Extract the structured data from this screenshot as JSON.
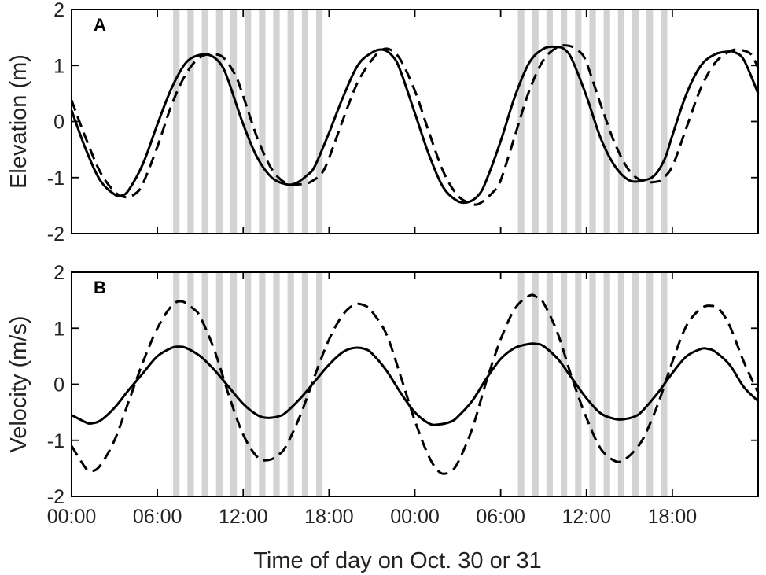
{
  "chart_data": [
    {
      "type": "line",
      "panel_label": "A",
      "ylabel": "Elevation (m)",
      "xlabel": "",
      "xlim": [
        0,
        48
      ],
      "ylim": [
        -2,
        2
      ],
      "yticks": [
        2,
        1,
        0,
        -1,
        -2
      ],
      "ytick_labels": [
        "2",
        "1",
        "0",
        "-1",
        "-2"
      ],
      "shaded_bands": [
        {
          "start": 7.1,
          "width": 0.45
        },
        {
          "start": 8.1,
          "width": 0.45
        },
        {
          "start": 9.1,
          "width": 0.45
        },
        {
          "start": 10.1,
          "width": 0.45
        },
        {
          "start": 11.1,
          "width": 0.45
        },
        {
          "start": 12.1,
          "width": 0.45
        },
        {
          "start": 13.1,
          "width": 0.45
        },
        {
          "start": 14.1,
          "width": 0.45
        },
        {
          "start": 15.1,
          "width": 0.45
        },
        {
          "start": 16.1,
          "width": 0.45
        },
        {
          "start": 17.1,
          "width": 0.45
        },
        {
          "start": 31.2,
          "width": 0.45
        },
        {
          "start": 32.2,
          "width": 0.45
        },
        {
          "start": 33.2,
          "width": 0.45
        },
        {
          "start": 34.2,
          "width": 0.45
        },
        {
          "start": 35.2,
          "width": 0.45
        },
        {
          "start": 36.2,
          "width": 0.45
        },
        {
          "start": 37.2,
          "width": 0.45
        },
        {
          "start": 38.2,
          "width": 0.45
        },
        {
          "start": 39.2,
          "width": 0.45
        },
        {
          "start": 40.2,
          "width": 0.45
        },
        {
          "start": 41.2,
          "width": 0.45
        }
      ],
      "series": [
        {
          "style": "solid",
          "x": [
            0,
            1,
            2,
            3,
            3.5,
            4,
            5,
            6,
            7,
            8,
            9,
            9.8,
            10.5,
            11,
            12,
            13,
            14,
            15,
            15.7,
            16.5,
            17,
            18,
            19,
            20,
            21,
            21.8,
            22.5,
            23,
            24,
            25,
            26,
            27,
            27.8,
            28.5,
            29,
            30,
            31,
            32,
            33,
            34,
            34.5,
            35,
            36,
            37,
            38,
            39,
            40,
            40.8,
            41.5,
            42,
            43,
            44,
            45,
            46,
            46.3,
            47,
            48
          ],
          "y": [
            0.2,
            -0.5,
            -1.05,
            -1.3,
            -1.32,
            -1.22,
            -0.75,
            -0.05,
            0.6,
            1.05,
            1.19,
            1.17,
            1.0,
            0.7,
            -0.05,
            -0.65,
            -1.0,
            -1.12,
            -1.1,
            -0.95,
            -0.8,
            -0.2,
            0.45,
            1.0,
            1.23,
            1.28,
            1.15,
            0.9,
            0.15,
            -0.6,
            -1.18,
            -1.42,
            -1.43,
            -1.3,
            -1.05,
            -0.35,
            0.45,
            1.05,
            1.3,
            1.33,
            1.28,
            1.1,
            0.45,
            -0.3,
            -0.8,
            -1.05,
            -1.05,
            -0.95,
            -0.65,
            -0.25,
            0.5,
            1.0,
            1.2,
            1.25,
            1.24,
            1.1,
            0.5
          ]
        },
        {
          "style": "dashed",
          "x": [
            0,
            1,
            2,
            3,
            3.8,
            4.5,
            5,
            6,
            7,
            8,
            9,
            10,
            10.7,
            11.5,
            12,
            13,
            14,
            15,
            16,
            16.7,
            17.5,
            18,
            19,
            20,
            21,
            21.7,
            22.3,
            23,
            24,
            25,
            26,
            27,
            28,
            28.6,
            29.5,
            30,
            31,
            32,
            33,
            34,
            34.8,
            35.5,
            36,
            37,
            38,
            39,
            40,
            41,
            41.3,
            42,
            43,
            44,
            45,
            46,
            46.7,
            47.5,
            48
          ],
          "y": [
            0.38,
            -0.3,
            -0.9,
            -1.25,
            -1.35,
            -1.28,
            -1.1,
            -0.45,
            0.3,
            0.85,
            1.15,
            1.2,
            1.12,
            0.8,
            0.45,
            -0.3,
            -0.85,
            -1.1,
            -1.12,
            -1.08,
            -0.92,
            -0.65,
            0.05,
            0.7,
            1.1,
            1.28,
            1.28,
            1.1,
            0.55,
            -0.2,
            -0.9,
            -1.32,
            -1.47,
            -1.45,
            -1.25,
            -1.05,
            -0.25,
            0.55,
            1.1,
            1.33,
            1.35,
            1.25,
            1.05,
            0.3,
            -0.4,
            -0.88,
            -1.07,
            -1.07,
            -1.02,
            -0.8,
            -0.1,
            0.6,
            1.05,
            1.25,
            1.28,
            1.2,
            0.95
          ]
        }
      ]
    },
    {
      "type": "line",
      "panel_label": "B",
      "ylabel": "Velocity (m/s)",
      "xlabel": "Time of day on Oct. 30 or 31",
      "xlim": [
        0,
        48
      ],
      "ylim": [
        -2,
        2
      ],
      "yticks": [
        2,
        1,
        0,
        -1,
        -2
      ],
      "ytick_labels": [
        "2",
        "1",
        "0",
        "-1",
        "-2"
      ],
      "xticks": [
        0,
        6,
        12,
        18,
        24,
        30,
        36,
        42,
        48
      ],
      "xtick_labels": [
        "00:00",
        "06:00",
        "12:00",
        "18:00",
        "00:00",
        "06:00",
        "12:00",
        "18:00",
        ""
      ],
      "shaded_bands": [
        {
          "start": 7.1,
          "width": 0.45
        },
        {
          "start": 8.1,
          "width": 0.45
        },
        {
          "start": 9.1,
          "width": 0.45
        },
        {
          "start": 10.1,
          "width": 0.45
        },
        {
          "start": 11.1,
          "width": 0.45
        },
        {
          "start": 12.1,
          "width": 0.45
        },
        {
          "start": 13.1,
          "width": 0.45
        },
        {
          "start": 14.1,
          "width": 0.45
        },
        {
          "start": 15.1,
          "width": 0.45
        },
        {
          "start": 16.1,
          "width": 0.45
        },
        {
          "start": 17.1,
          "width": 0.45
        },
        {
          "start": 31.2,
          "width": 0.45
        },
        {
          "start": 32.2,
          "width": 0.45
        },
        {
          "start": 33.2,
          "width": 0.45
        },
        {
          "start": 34.2,
          "width": 0.45
        },
        {
          "start": 35.2,
          "width": 0.45
        },
        {
          "start": 36.2,
          "width": 0.45
        },
        {
          "start": 37.2,
          "width": 0.45
        },
        {
          "start": 38.2,
          "width": 0.45
        },
        {
          "start": 39.2,
          "width": 0.45
        },
        {
          "start": 40.2,
          "width": 0.45
        },
        {
          "start": 41.2,
          "width": 0.45
        }
      ],
      "series": [
        {
          "style": "solid",
          "x": [
            0,
            1,
            1.3,
            2,
            3,
            4,
            5,
            6,
            7,
            7.5,
            8,
            9,
            10,
            11,
            12,
            13,
            13.7,
            14.5,
            15,
            16,
            17,
            18,
            19,
            19.8,
            20.5,
            21,
            22,
            23,
            24,
            25,
            25.6,
            26.5,
            27,
            28,
            29,
            30,
            31,
            32,
            32.5,
            33,
            34,
            35,
            36,
            37,
            38,
            38.7,
            39.5,
            40,
            41,
            42,
            43,
            44,
            44.5,
            45,
            46,
            47,
            48
          ],
          "y": [
            -0.55,
            -0.68,
            -0.7,
            -0.65,
            -0.42,
            -0.1,
            0.2,
            0.5,
            0.65,
            0.67,
            0.65,
            0.5,
            0.25,
            -0.05,
            -0.35,
            -0.55,
            -0.6,
            -0.57,
            -0.5,
            -0.25,
            0.05,
            0.35,
            0.58,
            0.65,
            0.63,
            0.55,
            0.25,
            -0.15,
            -0.5,
            -0.7,
            -0.72,
            -0.67,
            -0.58,
            -0.3,
            0.1,
            0.45,
            0.65,
            0.72,
            0.72,
            0.68,
            0.45,
            0.1,
            -0.25,
            -0.52,
            -0.62,
            -0.62,
            -0.56,
            -0.45,
            -0.15,
            0.2,
            0.5,
            0.63,
            0.63,
            0.58,
            0.35,
            -0.05,
            -0.3
          ]
        },
        {
          "style": "dashed",
          "x": [
            0,
            1,
            1.4,
            2,
            3,
            4,
            5,
            6,
            7,
            7.7,
            8.5,
            9,
            10,
            11,
            12,
            13,
            13.8,
            14.5,
            15,
            16,
            17,
            18,
            19,
            19.9,
            20.7,
            21,
            22,
            23,
            24,
            25,
            25.8,
            26.5,
            27,
            28,
            29,
            30,
            31,
            32,
            32.5,
            33,
            34,
            35,
            36,
            37,
            38,
            38.6,
            39.3,
            40,
            41,
            42,
            43,
            44,
            44.7,
            45.3,
            46,
            47,
            48
          ],
          "y": [
            -1.1,
            -1.5,
            -1.55,
            -1.45,
            -1.0,
            -0.3,
            0.4,
            1.0,
            1.4,
            1.48,
            1.35,
            1.2,
            0.6,
            -0.2,
            -0.9,
            -1.3,
            -1.35,
            -1.25,
            -1.1,
            -0.55,
            0.15,
            0.8,
            1.25,
            1.43,
            1.38,
            1.3,
            0.9,
            0.15,
            -0.65,
            -1.3,
            -1.58,
            -1.55,
            -1.4,
            -0.8,
            0.05,
            0.8,
            1.35,
            1.58,
            1.56,
            1.45,
            0.9,
            0.1,
            -0.6,
            -1.15,
            -1.37,
            -1.35,
            -1.2,
            -0.95,
            -0.35,
            0.4,
            1.05,
            1.35,
            1.4,
            1.33,
            1.05,
            0.4,
            -0.15
          ]
        }
      ]
    }
  ]
}
